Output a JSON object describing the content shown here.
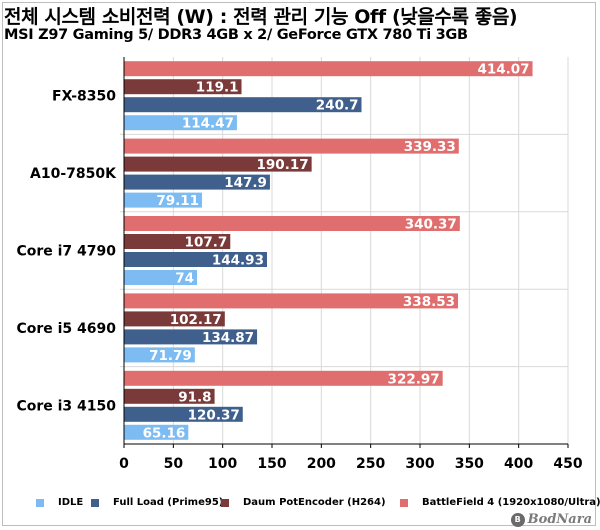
{
  "title": "전체 시스템 소비전력 (W) : 전력 관리 기능 Off (낮을수록 좋음)",
  "subtitle": "MSI Z97 Gaming 5/ DDR3 4GB x 2/ GeForce GTX 780 Ti 3GB",
  "watermark": "BodNara",
  "chart_data": {
    "type": "bar",
    "orientation": "horizontal",
    "categories": [
      "FX-8350",
      "A10-7850K",
      "Core i7 4790",
      "Core i5 4690",
      "Core i3 4150"
    ],
    "series": [
      {
        "name": "BattleField 4 (1920x1080/Ultra)",
        "color": "#e06e6e",
        "values": [
          414.07,
          339.33,
          340.37,
          338.53,
          322.97
        ],
        "labels": [
          "414.07",
          "339.33",
          "340.37",
          "338.53",
          "322.97"
        ]
      },
      {
        "name": "Daum PotEncoder (H264)",
        "color": "#7b3a3a",
        "values": [
          119.1,
          190.17,
          107.7,
          102.17,
          91.8
        ],
        "labels": [
          "119.1",
          "190.17",
          "107.7",
          "102.17",
          "91.8"
        ]
      },
      {
        "name": "Full Load (Prime95)",
        "color": "#3f5f8d",
        "values": [
          240.7,
          147.9,
          144.93,
          134.87,
          120.37
        ],
        "labels": [
          "240.7",
          "147.9",
          "144.93",
          "134.87",
          "120.37"
        ]
      },
      {
        "name": "IDLE",
        "color": "#7cbcf2",
        "values": [
          114.47,
          79.11,
          74,
          71.79,
          65.16
        ],
        "labels": [
          "114.47",
          "79.11",
          "74",
          "71.79",
          "65.16"
        ]
      }
    ],
    "legend_order": [
      "IDLE",
      "Full Load (Prime95)",
      "Daum PotEncoder (H264)",
      "BattleField 4 (1920x1080/Ultra)"
    ],
    "xlim": [
      0,
      450
    ],
    "xticks": [
      0,
      50,
      100,
      150,
      200,
      250,
      300,
      350,
      400,
      450
    ],
    "grid": true,
    "legend_position": "bottom"
  }
}
